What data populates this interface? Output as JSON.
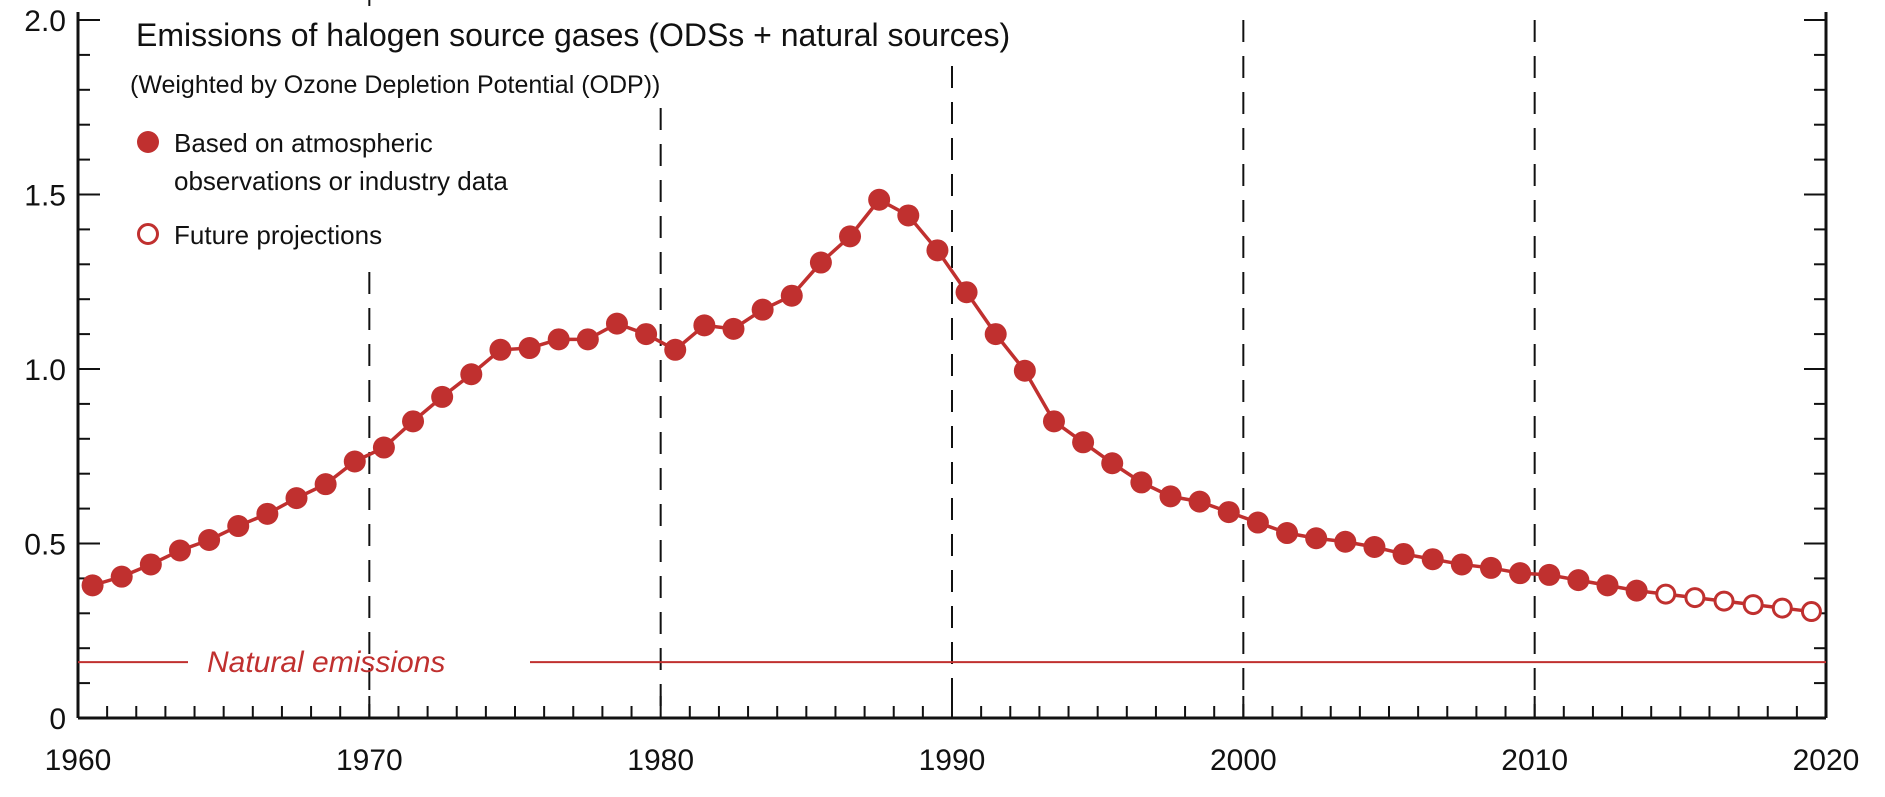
{
  "colors": {
    "series": "#c0302f",
    "axis": "#111111"
  },
  "chart_data": {
    "type": "line",
    "title": "Emissions of halogen source gases (ODSs + natural sources)",
    "subtitle": "(Weighted by Ozone Depletion Potential (ODP))",
    "xlabel": "",
    "ylabel": "",
    "xlim": [
      1960,
      2020
    ],
    "ylim": [
      0,
      2.0
    ],
    "x_ticks": [
      1960,
      1970,
      1980,
      1990,
      2000,
      2010,
      2020
    ],
    "x_tick_labels": [
      "1960",
      "1970",
      "1980",
      "1990",
      "2000",
      "2010",
      "2020"
    ],
    "y_ticks": [
      0,
      0.5,
      1.0,
      1.5,
      2.0
    ],
    "y_tick_labels": [
      "0",
      "0.5",
      "1.0",
      "1.5",
      "2.0"
    ],
    "grid": false,
    "vertical_reference_lines": [
      1970,
      1980,
      1990,
      2000,
      2010
    ],
    "legend_position": "top-left",
    "legend": [
      {
        "marker": "filled",
        "label_line1": "Based on atmospheric",
        "label_line2": "observations or industry data"
      },
      {
        "marker": "open",
        "label_line1": "Future projections",
        "label_line2": ""
      }
    ],
    "natural_emissions": {
      "label": "Natural emissions",
      "value": 0.16
    },
    "series": [
      {
        "name": "Based on atmospheric observations or industry data",
        "marker": "filled",
        "x": [
          1960.5,
          1961.5,
          1962.5,
          1963.5,
          1964.5,
          1965.5,
          1966.5,
          1967.5,
          1968.5,
          1969.5,
          1970.5,
          1971.5,
          1972.5,
          1973.5,
          1974.5,
          1975.5,
          1976.5,
          1977.5,
          1978.5,
          1979.5,
          1980.5,
          1981.5,
          1982.5,
          1983.5,
          1984.5,
          1985.5,
          1986.5,
          1987.5,
          1988.5,
          1989.5,
          1990.5,
          1991.5,
          1992.5,
          1993.5,
          1994.5,
          1995.5,
          1996.5,
          1997.5,
          1998.5,
          1999.5,
          2000.5,
          2001.5,
          2002.5,
          2003.5,
          2004.5,
          2005.5,
          2006.5,
          2007.5,
          2008.5,
          2009.5,
          2010.5,
          2011.5,
          2012.5,
          2013.5
        ],
        "y": [
          0.38,
          0.405,
          0.44,
          0.48,
          0.51,
          0.55,
          0.585,
          0.63,
          0.67,
          0.735,
          0.775,
          0.85,
          0.92,
          0.985,
          1.055,
          1.06,
          1.085,
          1.085,
          1.13,
          1.1,
          1.055,
          1.125,
          1.115,
          1.17,
          1.21,
          1.305,
          1.38,
          1.485,
          1.44,
          1.34,
          1.22,
          1.1,
          0.995,
          0.85,
          0.79,
          0.73,
          0.675,
          0.635,
          0.62,
          0.59,
          0.56,
          0.53,
          0.515,
          0.505,
          0.49,
          0.47,
          0.455,
          0.44,
          0.43,
          0.415,
          0.41,
          0.395,
          0.38,
          0.365
        ]
      },
      {
        "name": "Future projections",
        "marker": "open",
        "x": [
          2014.5,
          2015.5,
          2016.5,
          2017.5,
          2018.5,
          2019.5
        ],
        "y": [
          0.355,
          0.345,
          0.335,
          0.325,
          0.315,
          0.305
        ]
      }
    ]
  }
}
